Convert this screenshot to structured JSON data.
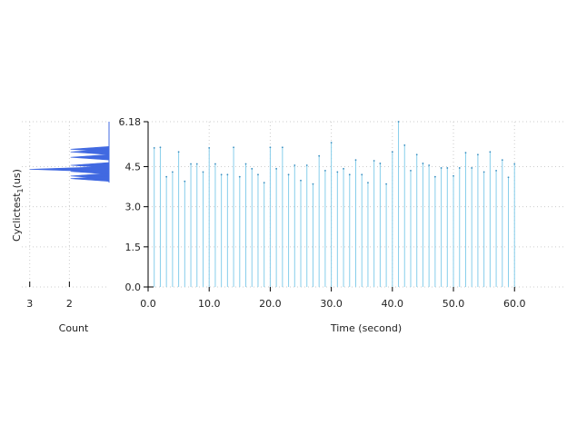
{
  "chart_data": {
    "type": "bar",
    "xlabel": "Time (second)",
    "ylabel": "Cyclictest",
    "ylabel_sub": "1",
    "ylabel_unit": "(us)",
    "hist_xlabel": "Count",
    "xlim": [
      0,
      68
    ],
    "ylim": [
      0,
      6.18
    ],
    "xticks": [
      "0.0",
      "10.0",
      "20.0",
      "30.0",
      "40.0",
      "50.0",
      "60.0"
    ],
    "yticks": [
      "0.0",
      "1.5",
      "3.0",
      "4.5",
      "6.18"
    ],
    "hist_xticks": [
      "3",
      "2"
    ],
    "hist_xlim": [
      3.2,
      1.0
    ],
    "colors": {
      "stem": "#87ceeb",
      "hist": "#4169e1"
    },
    "x": [
      1,
      2,
      3,
      4,
      5,
      6,
      7,
      8,
      9,
      10,
      11,
      12,
      13,
      14,
      15,
      16,
      17,
      18,
      19,
      20,
      21,
      22,
      23,
      24,
      25,
      26,
      27,
      28,
      29,
      30,
      31,
      32,
      33,
      34,
      35,
      36,
      37,
      38,
      39,
      40,
      41,
      42,
      43,
      44,
      45,
      46,
      47,
      48,
      49,
      50,
      51,
      52,
      53,
      54,
      55,
      56,
      57,
      58,
      59,
      60
    ],
    "values": [
      5.2,
      5.22,
      4.12,
      4.3,
      5.05,
      3.95,
      4.6,
      4.6,
      4.3,
      5.2,
      4.6,
      4.2,
      4.2,
      5.22,
      4.12,
      4.6,
      4.42,
      4.2,
      3.9,
      5.22,
      4.42,
      5.22,
      4.2,
      4.55,
      3.98,
      4.55,
      3.85,
      4.9,
      4.35,
      5.4,
      4.3,
      4.42,
      4.2,
      4.75,
      4.2,
      3.9,
      4.72,
      4.62,
      3.85,
      5.05,
      6.18,
      5.3,
      4.35,
      4.95,
      4.62,
      4.55,
      4.12,
      4.45,
      4.45,
      4.15,
      4.45,
      5.02,
      4.45,
      4.95,
      4.3,
      5.05,
      4.35,
      4.75,
      4.1,
      4.6
    ],
    "histogram": [
      {
        "y": 5.15,
        "count": 1.97
      },
      {
        "y": 5.05,
        "count": 1.97
      },
      {
        "y": 4.85,
        "count": 1.97
      },
      {
        "y": 4.55,
        "count": 1.97
      },
      {
        "y": 4.4,
        "count": 3.0
      },
      {
        "y": 4.32,
        "count": 1.97
      },
      {
        "y": 4.15,
        "count": 1.97
      },
      {
        "y": 4.05,
        "count": 1.97
      }
    ]
  }
}
